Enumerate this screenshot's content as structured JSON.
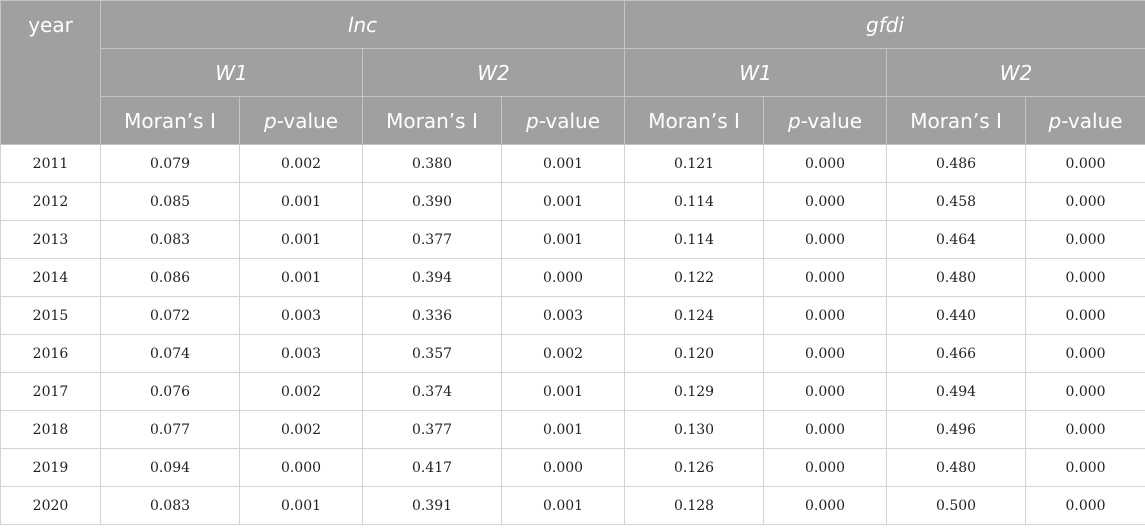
{
  "table": {
    "year_header": "year",
    "groups": [
      {
        "label": "lnc",
        "subgroups": [
          "W1",
          "W2"
        ]
      },
      {
        "label": "gfdi",
        "subgroups": [
          "W1",
          "W2"
        ]
      }
    ],
    "metric_labels": [
      "Moran’s I",
      "p",
      "-value"
    ],
    "rows": [
      [
        "2011",
        "0.079",
        "0.002",
        "0.380",
        "0.001",
        "0.121",
        "0.000",
        "0.486",
        "0.000"
      ],
      [
        "2012",
        "0.085",
        "0.001",
        "0.390",
        "0.001",
        "0.114",
        "0.000",
        "0.458",
        "0.000"
      ],
      [
        "2013",
        "0.083",
        "0.001",
        "0.377",
        "0.001",
        "0.114",
        "0.000",
        "0.464",
        "0.000"
      ],
      [
        "2014",
        "0.086",
        "0.001",
        "0.394",
        "0.000",
        "0.122",
        "0.000",
        "0.480",
        "0.000"
      ],
      [
        "2015",
        "0.072",
        "0.003",
        "0.336",
        "0.003",
        "0.124",
        "0.000",
        "0.440",
        "0.000"
      ],
      [
        "2016",
        "0.074",
        "0.003",
        "0.357",
        "0.002",
        "0.120",
        "0.000",
        "0.466",
        "0.000"
      ],
      [
        "2017",
        "0.076",
        "0.002",
        "0.374",
        "0.001",
        "0.129",
        "0.000",
        "0.494",
        "0.000"
      ],
      [
        "2018",
        "0.077",
        "0.002",
        "0.377",
        "0.001",
        "0.130",
        "0.000",
        "0.496",
        "0.000"
      ],
      [
        "2019",
        "0.094",
        "0.000",
        "0.417",
        "0.000",
        "0.126",
        "0.000",
        "0.480",
        "0.000"
      ],
      [
        "2020",
        "0.083",
        "0.001",
        "0.391",
        "0.001",
        "0.128",
        "0.000",
        "0.500",
        "0.000"
      ]
    ]
  }
}
